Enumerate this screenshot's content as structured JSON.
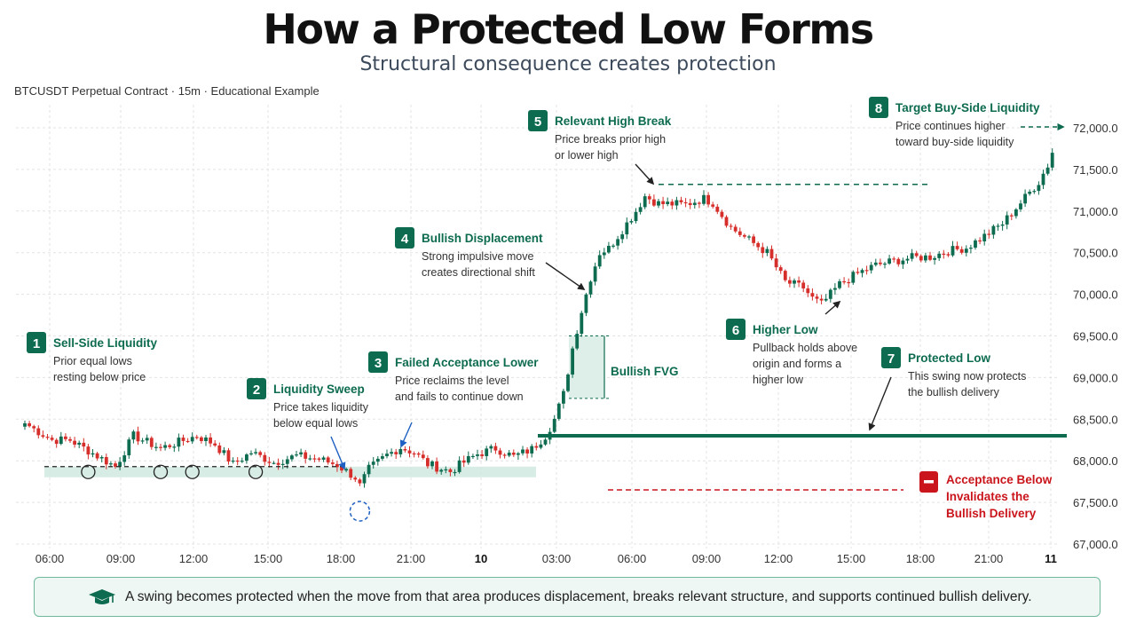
{
  "header": {
    "title": "How a Protected Low Forms",
    "subtitle": "Structural consequence creates protection",
    "instrument": "BTCUSDT Perpetual Contract · 15m · Educational Example"
  },
  "colors": {
    "bull": "#0d6b4f",
    "bear": "#d62e2a",
    "accent": "#0d6b4f",
    "danger": "#c9151b",
    "zone": "#cfe9df"
  },
  "chart_data": {
    "type": "candlestick",
    "ylim": [
      67000,
      72000
    ],
    "yticks": [
      "67,000.0",
      "67,500.0",
      "68,000.0",
      "68,500.0",
      "69,000.0",
      "69,500.0",
      "70,000.0",
      "70,500.0",
      "71,000.0",
      "71,500.0",
      "72,000.0"
    ],
    "xticks": [
      "06:00",
      "09:00",
      "12:00",
      "15:00",
      "18:00",
      "21:00",
      "10",
      "03:00",
      "06:00",
      "09:00",
      "12:00",
      "15:00",
      "18:00",
      "21:00",
      "11"
    ],
    "bold_xticks": [
      "10",
      "11"
    ],
    "equal_lows_level": 67930,
    "protected_low_level": 68300,
    "relevant_high_level": 71320,
    "invalidation_level": 67650,
    "fvg": {
      "low": 68750,
      "high": 69500,
      "label": "Bullish FVG"
    },
    "anchors": [
      [
        0,
        68450
      ],
      [
        6,
        68250
      ],
      [
        10,
        68250
      ],
      [
        20,
        67930
      ],
      [
        24,
        68300
      ],
      [
        30,
        68150
      ],
      [
        38,
        68300
      ],
      [
        42,
        68200
      ],
      [
        46,
        67960
      ],
      [
        50,
        68100
      ],
      [
        55,
        67980
      ],
      [
        60,
        68060
      ],
      [
        65,
        68020
      ],
      [
        69,
        67950
      ],
      [
        73,
        67800
      ],
      [
        74,
        67700
      ],
      [
        76,
        67900
      ],
      [
        80,
        68070
      ],
      [
        83,
        68160
      ],
      [
        86,
        68100
      ],
      [
        89,
        67960
      ],
      [
        94,
        67870
      ],
      [
        96,
        67950
      ],
      [
        100,
        68080
      ],
      [
        104,
        68150
      ],
      [
        108,
        68050
      ],
      [
        112,
        68140
      ],
      [
        115,
        68300
      ],
      [
        117,
        68500
      ],
      [
        119,
        68800
      ],
      [
        121,
        69350
      ],
      [
        123,
        69800
      ],
      [
        125,
        70200
      ],
      [
        127,
        70500
      ],
      [
        129,
        70550
      ],
      [
        131,
        70700
      ],
      [
        135,
        71000
      ],
      [
        137,
        71180
      ],
      [
        140,
        71090
      ],
      [
        146,
        71080
      ],
      [
        150,
        71150
      ],
      [
        152,
        71100
      ],
      [
        156,
        70800
      ],
      [
        160,
        70650
      ],
      [
        164,
        70500
      ],
      [
        168,
        70150
      ],
      [
        172,
        70080
      ],
      [
        174,
        69950
      ],
      [
        176,
        69880
      ],
      [
        178,
        70000
      ],
      [
        180,
        70120
      ],
      [
        184,
        70250
      ],
      [
        188,
        70350
      ],
      [
        192,
        70400
      ],
      [
        196,
        70440
      ],
      [
        200,
        70450
      ],
      [
        204,
        70520
      ],
      [
        208,
        70560
      ],
      [
        212,
        70700
      ],
      [
        216,
        70850
      ],
      [
        220,
        71100
      ],
      [
        224,
        71350
      ],
      [
        226,
        71550
      ],
      [
        227,
        71700
      ]
    ],
    "markers": {
      "equal_low_circles": [
        14,
        30,
        37,
        51
      ],
      "sweep_circle": 74
    },
    "annotations": [
      {
        "num": "1",
        "title": "Sell-Side Liquidity",
        "body": [
          "Prior equal lows",
          "resting below price"
        ]
      },
      {
        "num": "2",
        "title": "Liquidity Sweep",
        "body": [
          "Price takes liquidity",
          "below equal lows"
        ]
      },
      {
        "num": "3",
        "title": "Failed Acceptance Lower",
        "body": [
          "Price reclaims the level",
          "and fails to continue down"
        ]
      },
      {
        "num": "4",
        "title": "Bullish Displacement",
        "body": [
          "Strong impulsive move",
          "creates directional shift"
        ]
      },
      {
        "num": "5",
        "title": "Relevant High Break",
        "body": [
          "Price breaks prior high",
          "or lower high"
        ]
      },
      {
        "num": "6",
        "title": "Higher Low",
        "body": [
          "Pullback holds above",
          "origin and forms a",
          "higher low"
        ]
      },
      {
        "num": "7",
        "title": "Protected Low",
        "body": [
          "This swing now protects",
          "the bullish delivery"
        ]
      },
      {
        "num": "8",
        "title": "Target Buy-Side Liquidity",
        "body": [
          "Price continues higher",
          "toward buy-side liquidity"
        ]
      }
    ],
    "warning": {
      "icon": "minus-icon",
      "lines": [
        "Acceptance Below",
        "Invalidates the",
        "Bullish Delivery"
      ]
    }
  },
  "footer": {
    "icon": "graduation-cap-icon",
    "text": "A swing becomes protected when the move from that area produces displacement, breaks relevant structure, and supports continued bullish delivery."
  }
}
